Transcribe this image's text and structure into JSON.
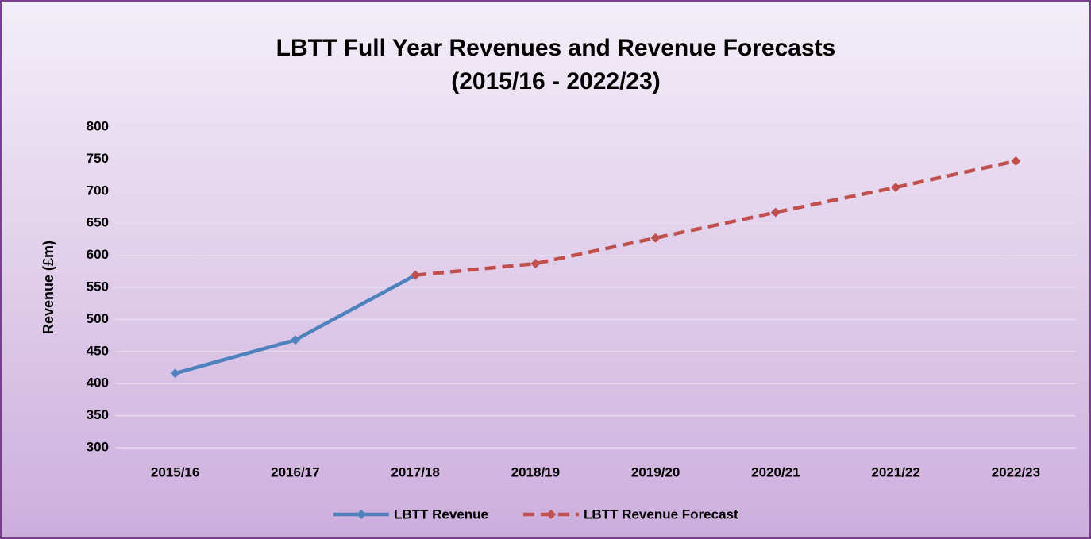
{
  "chart_data": {
    "type": "line",
    "title": "LBTT Full Year Revenues and Revenue Forecasts",
    "subtitle": "(2015/16 - 2022/23)",
    "y_label": "Revenue (£m)",
    "categories": [
      "2015/16",
      "2016/17",
      "2017/18",
      "2018/19",
      "2019/20",
      "2020/21",
      "2021/22",
      "2022/23"
    ],
    "series": [
      {
        "name": "LBTT Revenue",
        "color": "#4f81bd",
        "dashed": false,
        "values": [
          416,
          468,
          569,
          null,
          null,
          null,
          null,
          null
        ]
      },
      {
        "name": "LBTT Revenue Forecast",
        "color": "#c0504d",
        "dashed": true,
        "values": [
          null,
          null,
          569,
          587,
          627,
          667,
          706,
          747
        ]
      }
    ],
    "ylim": [
      300,
      800
    ],
    "yticks": [
      300,
      350,
      400,
      450,
      500,
      550,
      600,
      650,
      700,
      750,
      800
    ],
    "grid": true,
    "legend": "bottom"
  }
}
